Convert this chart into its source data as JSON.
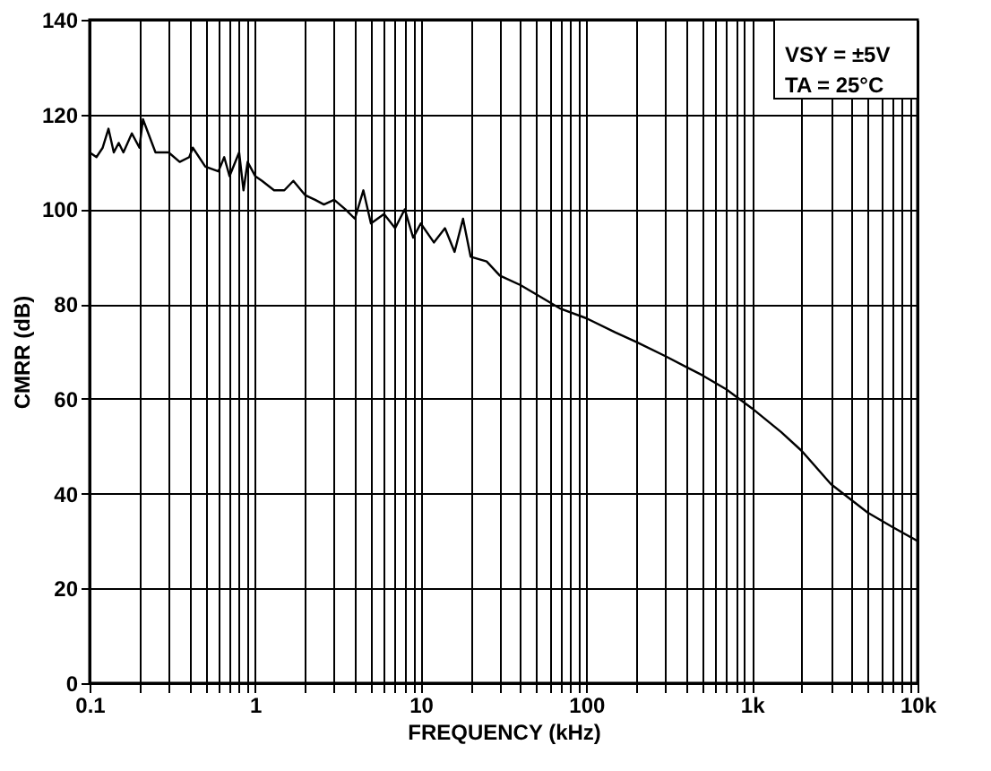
{
  "chart_data": {
    "type": "line",
    "xlabel": "FREQUENCY (kHz)",
    "ylabel": "CMRR (dB)",
    "log": "x",
    "grid": true,
    "marker": "none",
    "line_style": "solid",
    "xlim": [
      0.1,
      10000
    ],
    "ylim": [
      0,
      140
    ],
    "xticks": [
      0.1,
      {
        "value": 0.2,
        "label": null
      },
      {
        "value": 0.3,
        "label": null
      },
      {
        "value": 0.4,
        "label": null
      },
      {
        "value": 0.5,
        "label": null
      },
      {
        "value": 0.6,
        "label": null
      },
      {
        "value": 0.7,
        "label": null
      },
      {
        "value": 0.8,
        "label": null
      },
      {
        "value": 0.9,
        "label": null
      },
      1,
      {
        "value": 2,
        "label": null
      },
      {
        "value": 3,
        "label": null
      },
      {
        "value": 4,
        "label": null
      },
      {
        "value": 5,
        "label": null
      },
      {
        "value": 6,
        "label": null
      },
      {
        "value": 7,
        "label": null
      },
      {
        "value": 8,
        "label": null
      },
      {
        "value": 9,
        "label": null
      },
      10,
      {
        "value": 20,
        "label": null
      },
      {
        "value": 30,
        "label": null
      },
      {
        "value": 40,
        "label": null
      },
      {
        "value": 50,
        "label": null
      },
      {
        "value": 60,
        "label": null
      },
      {
        "value": 70,
        "label": null
      },
      {
        "value": 80,
        "label": null
      },
      {
        "value": 90,
        "label": null
      },
      100,
      {
        "value": 200,
        "label": null
      },
      {
        "value": 300,
        "label": null
      },
      {
        "value": 400,
        "label": null
      },
      {
        "value": 500,
        "label": null
      },
      {
        "value": 600,
        "label": null
      },
      {
        "value": 700,
        "label": null
      },
      {
        "value": 800,
        "label": null
      },
      {
        "value": 900,
        "label": null
      },
      {
        "value": 1000,
        "label": "1k"
      },
      {
        "value": 2000,
        "label": null
      },
      {
        "value": 3000,
        "label": null
      },
      {
        "value": 4000,
        "label": null
      },
      {
        "value": 5000,
        "label": null
      },
      {
        "value": 6000,
        "label": null
      },
      {
        "value": 7000,
        "label": null
      },
      {
        "value": 8000,
        "label": null
      },
      {
        "value": 9000,
        "label": null
      },
      {
        "value": 10000,
        "label": "10k"
      }
    ],
    "yticks": [
      0,
      20,
      40,
      60,
      80,
      100,
      120,
      140
    ],
    "annotations": [
      "VSY = ±5V",
      "TA = 25°C"
    ],
    "series": [
      {
        "color": "#000000",
        "x": [
          0.1,
          0.11,
          0.12,
          0.13,
          0.14,
          0.15,
          0.16,
          0.18,
          0.2,
          0.21,
          0.25,
          0.3,
          0.35,
          0.4,
          0.42,
          0.5,
          0.6,
          0.65,
          0.7,
          0.8,
          0.85,
          0.9,
          1,
          1.1,
          1.3,
          1.5,
          1.7,
          2,
          2.3,
          2.6,
          3,
          3.5,
          4,
          4.5,
          5,
          6,
          7,
          8,
          9,
          10,
          12,
          14,
          16,
          18,
          20,
          25,
          30,
          40,
          50,
          70,
          100,
          150,
          200,
          300,
          500,
          700,
          1000,
          1500,
          2000,
          3000,
          5000,
          7000,
          10000
        ],
        "values": [
          112,
          111,
          113,
          117,
          112,
          114,
          112,
          116,
          113,
          119,
          112,
          112,
          110,
          111,
          113,
          109,
          108,
          111,
          107,
          112,
          104,
          110,
          107,
          106,
          104,
          104,
          106,
          103,
          102,
          101,
          102,
          100,
          98,
          104,
          97,
          99,
          96,
          100,
          94,
          97,
          93,
          96,
          91,
          98,
          90,
          89,
          86,
          84,
          82,
          79,
          77,
          74,
          72,
          69,
          65,
          62,
          58,
          53,
          49,
          42,
          36,
          33,
          30
        ]
      }
    ]
  }
}
